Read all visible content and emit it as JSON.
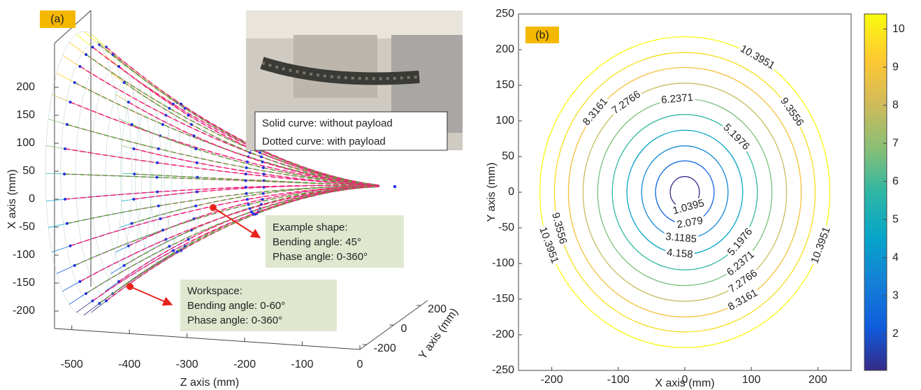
{
  "chart_data": [
    {
      "type": "surface3d",
      "label": "(a)",
      "xlabel": "X axis (mm)",
      "ylabel": "Y axis (mm)",
      "zlabel": "Z axis (mm)",
      "xlim": [
        -250,
        250
      ],
      "xticks": [
        200,
        150,
        100,
        50,
        0,
        -50,
        -100,
        -150,
        -200
      ],
      "zlim": [
        -530,
        0
      ],
      "zticks": [
        -500,
        -400,
        -300,
        -200,
        -100,
        0
      ],
      "ylim": [
        -250,
        250
      ],
      "yticks": [
        200,
        0,
        -200
      ],
      "inset_text": [
        "Solid curve: without payload",
        "Dotted curve: with payload"
      ],
      "example_box": [
        "Example shape:",
        "Bending angle: 45°",
        "Phase angle: 0-360°"
      ],
      "workspace_box": [
        "Workspace:",
        "Bending angle: 0-60°",
        "Phase angle: 0-360°"
      ]
    },
    {
      "type": "contour",
      "label": "(b)",
      "xlabel": "X axis (mm)",
      "ylabel": "Y axis (mm)",
      "xlim": [
        -250,
        250
      ],
      "xticks": [
        -200,
        -100,
        0,
        100,
        200
      ],
      "ylim": [
        -250,
        250
      ],
      "yticks": [
        -250,
        -200,
        -150,
        -100,
        -50,
        0,
        50,
        100,
        150,
        200,
        250
      ],
      "clim": [
        1.0395,
        10.3951
      ],
      "cticks": [
        2,
        3,
        4,
        5,
        6,
        7,
        8,
        9,
        10
      ],
      "contours": [
        {
          "level": 1.0395,
          "radius": 22,
          "color": "#352a87"
        },
        {
          "level": 2.079,
          "radius": 44,
          "color": "#0d63e0"
        },
        {
          "level": 3.1185,
          "radius": 65,
          "color": "#1488d3"
        },
        {
          "level": 4.158,
          "radius": 87,
          "color": "#08a5c6"
        },
        {
          "level": 5.1976,
          "radius": 109,
          "color": "#32b8a1"
        },
        {
          "level": 6.2371,
          "radius": 131,
          "color": "#7bbf7c"
        },
        {
          "level": 7.2766,
          "radius": 153,
          "color": "#c6bc5c"
        },
        {
          "level": 8.3161,
          "radius": 175,
          "color": "#f5c03a"
        },
        {
          "level": 9.3556,
          "radius": 196,
          "color": "#f4de1f"
        },
        {
          "level": 10.3951,
          "radius": 218,
          "color": "#f9fb0e"
        }
      ]
    }
  ]
}
